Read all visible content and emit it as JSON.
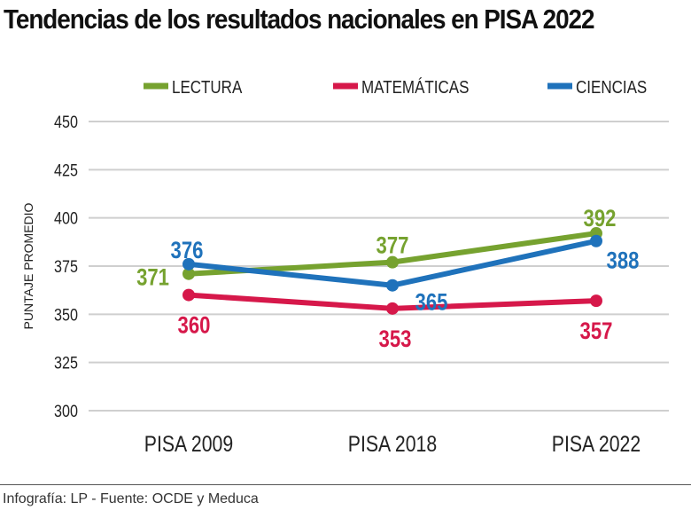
{
  "title": "Tendencias de los resultados nacionales en PISA 2022",
  "footer": "Infografía: LP - Fuente: OCDE y Meduca",
  "chart_data": {
    "type": "line",
    "title": "Tendencias de los resultados nacionales en PISA 2022",
    "ylabel": "PUNTAJE PROMEDIO",
    "xlabel": "",
    "categories": [
      "PISA 2009",
      "PISA 2018",
      "PISA 2022"
    ],
    "ylim": [
      300,
      450
    ],
    "yticks": [
      300,
      325,
      350,
      375,
      400,
      425,
      450
    ],
    "grid": true,
    "legend": "top",
    "series": [
      {
        "name": "LECTURA",
        "color": "#76a22f",
        "values": [
          371,
          377,
          392
        ]
      },
      {
        "name": "MATEMÁTICAS",
        "color": "#d6184a",
        "values": [
          360,
          353,
          357
        ]
      },
      {
        "name": "CIENCIAS",
        "color": "#1f72bb",
        "values": [
          376,
          365,
          388
        ]
      }
    ]
  }
}
